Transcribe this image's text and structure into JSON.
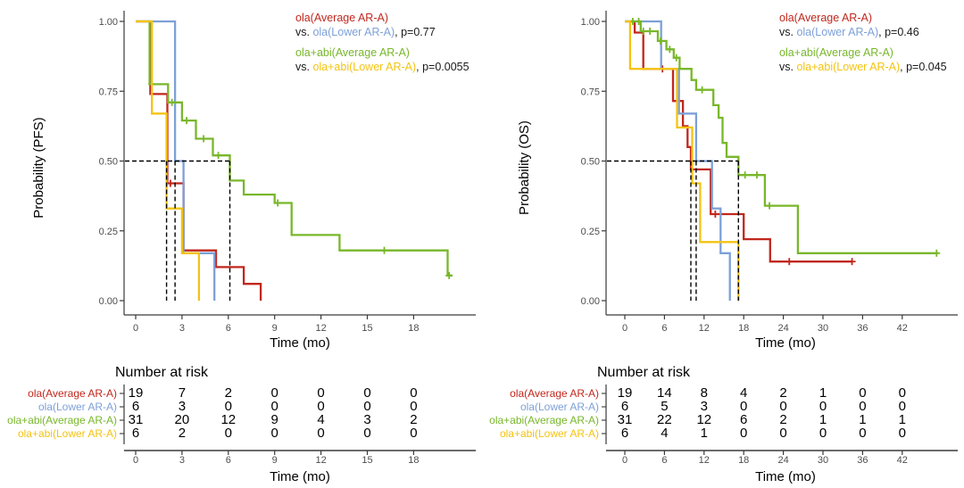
{
  "figure": {
    "colors": {
      "red": "#c1271d",
      "blue": "#7da0d8",
      "green": "#78b72a",
      "yellow": "#f3c312",
      "axis": "#3a3a3a",
      "tick_label": "#4d4d4d",
      "dashed": "#000000",
      "risk_number": "#000000"
    }
  },
  "chart_data": [
    {
      "type": "line",
      "name": "PFS",
      "ylabel": "Probability (PFS)",
      "xlabel": "Time (mo)",
      "xlim": [
        0,
        21.8
      ],
      "ylim": [
        0,
        1
      ],
      "xticks": [
        0,
        3,
        6,
        9,
        12,
        15,
        18
      ],
      "yticks": [
        {
          "v": 1.0,
          "label": "1.00"
        },
        {
          "v": 0.75,
          "label": "0.75"
        },
        {
          "v": 0.5,
          "label": "0.50"
        },
        {
          "v": 0.25,
          "label": "0.25"
        },
        {
          "v": 0.0,
          "label": "0.00"
        }
      ],
      "grid": false,
      "legend_position": "top-right",
      "legend": {
        "line1": {
          "label": "ola(Average AR-A)",
          "color": "red"
        },
        "line2": {
          "prefix": "vs. ",
          "label": "ola(Lower AR-A)",
          "color": "blue",
          "suffix": ", p=0.77"
        },
        "line3": {
          "label": "ola+abi(Average AR-A)",
          "color": "green"
        },
        "line4": {
          "prefix": "vs. ",
          "label": "ola+abi(Lower AR-A)",
          "color": "yellow",
          "suffix": ", p=0.0055"
        }
      },
      "median_probability": 0.5,
      "median_times": [
        2.0,
        2.55,
        6.1
      ],
      "series": [
        {
          "name": "ola(Average AR-A)",
          "color": "red",
          "steps": [
            [
              0,
              1
            ],
            [
              0.95,
              0.74
            ],
            [
              2.05,
              0.42
            ],
            [
              3.1,
              0.18
            ],
            [
              5.2,
              0.12
            ],
            [
              7.0,
              0.06
            ],
            [
              8.1,
              0
            ]
          ],
          "end": 8.1,
          "censors": [
            [
              2.25,
              0.42
            ]
          ]
        },
        {
          "name": "ola(Lower AR-A)",
          "color": "blue",
          "steps": [
            [
              0,
              1
            ],
            [
              2.55,
              0.5
            ],
            [
              3.1,
              0.17
            ],
            [
              5.1,
              0
            ]
          ],
          "end": 5.1,
          "censors": []
        },
        {
          "name": "ola+abi(Average AR-A)",
          "color": "green",
          "steps": [
            [
              0,
              1
            ],
            [
              0.9,
              0.775
            ],
            [
              2.1,
              0.71
            ],
            [
              3.0,
              0.645
            ],
            [
              3.9,
              0.58
            ],
            [
              5.0,
              0.52
            ],
            [
              6.1,
              0.43
            ],
            [
              7.0,
              0.38
            ],
            [
              9.0,
              0.35
            ],
            [
              10.1,
              0.235
            ],
            [
              13.2,
              0.18
            ],
            [
              20.2,
              0.09
            ]
          ],
          "end": 20.5,
          "censors": [
            [
              1.05,
              0.775
            ],
            [
              2.35,
              0.71
            ],
            [
              3.3,
              0.645
            ],
            [
              4.4,
              0.58
            ],
            [
              5.35,
              0.52
            ],
            [
              9.2,
              0.35
            ],
            [
              16.1,
              0.18
            ],
            [
              20.3,
              0.09
            ]
          ]
        },
        {
          "name": "ola+abi(Lower AR-A)",
          "color": "yellow",
          "steps": [
            [
              0,
              1
            ],
            [
              1.05,
              0.67
            ],
            [
              2.0,
              0.33
            ],
            [
              3.0,
              0.17
            ],
            [
              4.1,
              0
            ]
          ],
          "end": 4.1,
          "censors": []
        }
      ],
      "risk_table": {
        "title": "Number at risk",
        "xlabel": "Time (mo)",
        "times": [
          0,
          3,
          6,
          9,
          12,
          15,
          18
        ],
        "rows": [
          {
            "label": "ola(Average AR-A)",
            "color": "red",
            "values": [
              19,
              7,
              2,
              0,
              0,
              0,
              0
            ]
          },
          {
            "label": "ola(Lower AR-A)",
            "color": "blue",
            "values": [
              6,
              3,
              0,
              0,
              0,
              0,
              0
            ]
          },
          {
            "label": "ola+abi(Average AR-A)",
            "color": "green",
            "values": [
              31,
              20,
              12,
              9,
              4,
              3,
              2
            ]
          },
          {
            "label": "ola+abi(Lower AR-A)",
            "color": "yellow",
            "values": [
              6,
              2,
              0,
              0,
              0,
              0,
              0
            ]
          }
        ]
      }
    },
    {
      "type": "line",
      "name": "OS",
      "ylabel": "Probability (OS)",
      "xlabel": "Time (mo)",
      "xlim": [
        0,
        47.8
      ],
      "ylim": [
        0,
        1
      ],
      "xticks": [
        0,
        6,
        12,
        18,
        24,
        30,
        36,
        42
      ],
      "yticks": [
        {
          "v": 1.0,
          "label": "1.00"
        },
        {
          "v": 0.75,
          "label": "0.75"
        },
        {
          "v": 0.5,
          "label": "0.50"
        },
        {
          "v": 0.25,
          "label": "0.25"
        },
        {
          "v": 0.0,
          "label": "0.00"
        }
      ],
      "grid": false,
      "legend_position": "top-right",
      "legend": {
        "line1": {
          "label": "ola(Average AR-A)",
          "color": "red"
        },
        "line2": {
          "prefix": "vs. ",
          "label": "ola(Lower AR-A)",
          "color": "blue",
          "suffix": ", p=0.46"
        },
        "line3": {
          "label": "ola+abi(Average AR-A)",
          "color": "green"
        },
        "line4": {
          "prefix": "vs. ",
          "label": "ola+abi(Lower AR-A)",
          "color": "yellow",
          "suffix": ", p=0.045"
        }
      },
      "median_probability": 0.5,
      "median_times": [
        10.0,
        10.8,
        17.2
      ],
      "series": [
        {
          "name": "ola(Average AR-A)",
          "color": "red",
          "steps": [
            [
              0,
              1
            ],
            [
              1.5,
              0.96
            ],
            [
              2.8,
              0.83
            ],
            [
              7.3,
              0.715
            ],
            [
              8.8,
              0.625
            ],
            [
              9.5,
              0.55
            ],
            [
              10.0,
              0.47
            ],
            [
              13.0,
              0.31
            ],
            [
              18.0,
              0.22
            ],
            [
              22.0,
              0.14
            ]
          ],
          "end": 34.4,
          "censors": [
            [
              5.7,
              0.83
            ],
            [
              13.7,
              0.31
            ],
            [
              24.9,
              0.14
            ],
            [
              34.4,
              0.14
            ]
          ]
        },
        {
          "name": "ola(Lower AR-A)",
          "color": "blue",
          "steps": [
            [
              0,
              1
            ],
            [
              5.5,
              0.83
            ],
            [
              8.2,
              0.67
            ],
            [
              10.8,
              0.5
            ],
            [
              13.2,
              0.33
            ],
            [
              14.5,
              0.17
            ],
            [
              15.9,
              0
            ]
          ],
          "end": 15.9,
          "censors": []
        },
        {
          "name": "ola+abi(Average AR-A)",
          "color": "green",
          "steps": [
            [
              0,
              1
            ],
            [
              2.4,
              0.965
            ],
            [
              5.0,
              0.93
            ],
            [
              6.3,
              0.9
            ],
            [
              7.4,
              0.87
            ],
            [
              8.3,
              0.83
            ],
            [
              10.1,
              0.79
            ],
            [
              10.8,
              0.755
            ],
            [
              13.4,
              0.7
            ],
            [
              14.2,
              0.655
            ],
            [
              14.8,
              0.565
            ],
            [
              15.4,
              0.515
            ],
            [
              17.2,
              0.45
            ],
            [
              21.2,
              0.34
            ],
            [
              26.2,
              0.17
            ]
          ],
          "end": 47.4,
          "censors": [
            [
              1.2,
              1
            ],
            [
              2.1,
              1
            ],
            [
              2.8,
              0.965
            ],
            [
              3.8,
              0.965
            ],
            [
              5.4,
              0.93
            ],
            [
              6.8,
              0.9
            ],
            [
              7.8,
              0.87
            ],
            [
              11.7,
              0.755
            ],
            [
              18.2,
              0.45
            ],
            [
              20.0,
              0.45
            ],
            [
              21.9,
              0.34
            ],
            [
              47.2,
              0.17
            ]
          ]
        },
        {
          "name": "ola+abi(Lower AR-A)",
          "color": "yellow",
          "steps": [
            [
              0,
              1
            ],
            [
              0.8,
              0.83
            ],
            [
              7.9,
              0.62
            ],
            [
              10.2,
              0.42
            ],
            [
              11.4,
              0.21
            ],
            [
              17.2,
              0
            ]
          ],
          "end": 17.2,
          "censors": []
        }
      ],
      "risk_table": {
        "title": "Number at risk",
        "xlabel": "Time (mo)",
        "times": [
          0,
          6,
          12,
          18,
          24,
          30,
          36,
          42
        ],
        "rows": [
          {
            "label": "ola(Average AR-A)",
            "color": "red",
            "values": [
              19,
              14,
              8,
              4,
              2,
              1,
              0,
              0
            ]
          },
          {
            "label": "ola(Lower AR-A)",
            "color": "blue",
            "values": [
              6,
              5,
              3,
              0,
              0,
              0,
              0,
              0
            ]
          },
          {
            "label": "ola+abi(Average AR-A)",
            "color": "green",
            "values": [
              31,
              22,
              12,
              6,
              2,
              1,
              1,
              1
            ]
          },
          {
            "label": "ola+abi(Lower AR-A)",
            "color": "yellow",
            "values": [
              6,
              4,
              1,
              0,
              0,
              0,
              0,
              0
            ]
          }
        ]
      }
    }
  ]
}
